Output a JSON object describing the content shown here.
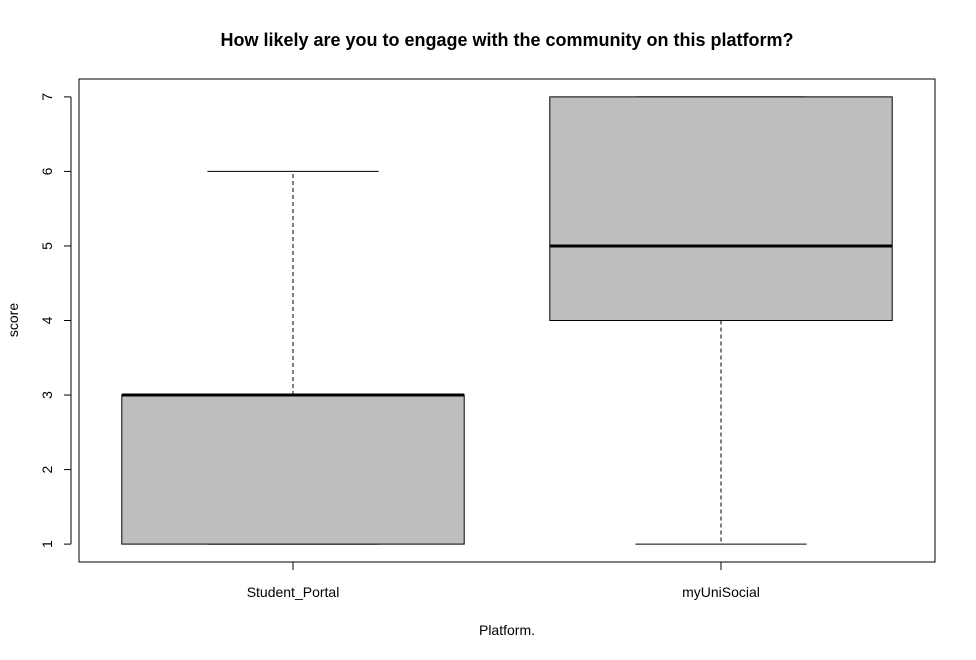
{
  "chart_data": {
    "type": "boxplot",
    "title": "How likely are you to engage with the community on this platform?",
    "xlabel": "Platform.",
    "ylabel": "score",
    "ylim": [
      0.76,
      7.24
    ],
    "yticks": [
      1,
      2,
      3,
      4,
      5,
      6,
      7
    ],
    "box_color": "#bebebe",
    "categories": [
      "Student_Portal",
      "myUniSocial"
    ],
    "boxes": [
      {
        "name": "Student_Portal",
        "min": 1,
        "q1": 1,
        "median": 3,
        "q3": 3,
        "max": 6
      },
      {
        "name": "myUniSocial",
        "min": 1,
        "q1": 4,
        "median": 5,
        "q3": 7,
        "max": 7
      }
    ]
  }
}
